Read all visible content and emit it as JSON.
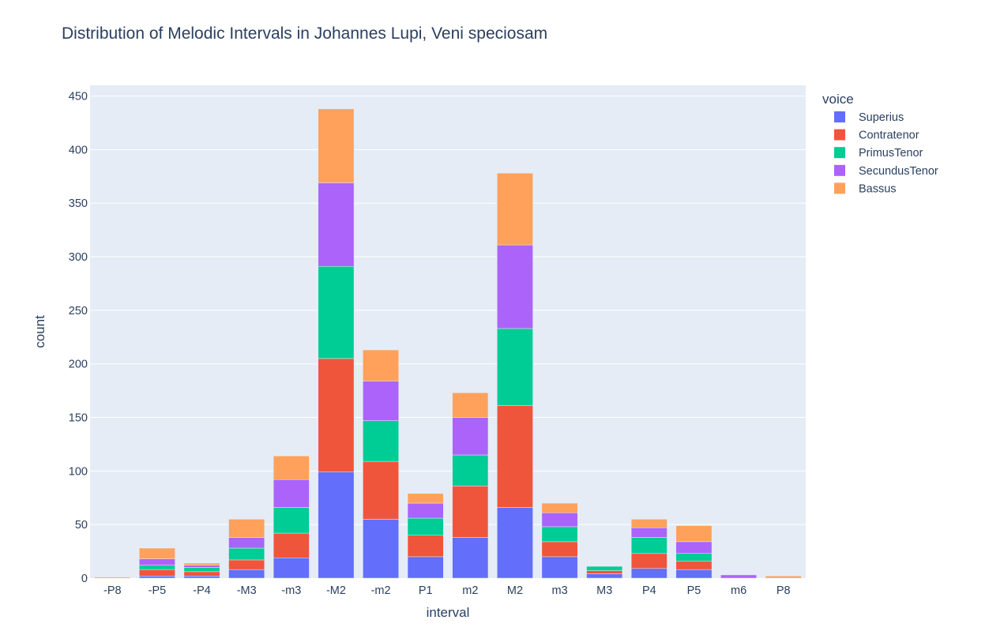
{
  "chart_data": {
    "type": "bar",
    "stacked": true,
    "title": "Distribution of Melodic Intervals in Johannes Lupi, Veni speciosam",
    "xlabel": "interval",
    "ylabel": "count",
    "ylim": [
      0,
      460
    ],
    "yticks": [
      0,
      50,
      100,
      150,
      200,
      250,
      300,
      350,
      400,
      450
    ],
    "grid": true,
    "legend_title": "voice",
    "legend_position": "top-right",
    "categories": [
      "-P8",
      "-P5",
      "-P4",
      "-M3",
      "-m3",
      "-M2",
      "-m2",
      "P1",
      "m2",
      "M2",
      "m3",
      "M3",
      "P4",
      "P5",
      "m6",
      "P8"
    ],
    "series": [
      {
        "name": "Superius",
        "color": "#636efa",
        "values": [
          0,
          2,
          2,
          8,
          19,
          99,
          55,
          20,
          38,
          66,
          20,
          4,
          9,
          8,
          0,
          0
        ]
      },
      {
        "name": "Contratenor",
        "color": "#ef553b",
        "values": [
          0,
          6,
          4,
          9,
          23,
          106,
          54,
          20,
          48,
          95,
          14,
          3,
          14,
          8,
          0,
          0
        ]
      },
      {
        "name": "PrimusTenor",
        "color": "#00cc96",
        "values": [
          0,
          4,
          4,
          11,
          24,
          86,
          38,
          16,
          29,
          72,
          14,
          4,
          15,
          7,
          0,
          0
        ]
      },
      {
        "name": "SecundusTenor",
        "color": "#ab63fa",
        "values": [
          0,
          6,
          2,
          10,
          26,
          78,
          37,
          14,
          35,
          78,
          13,
          0,
          9,
          11,
          3,
          0
        ]
      },
      {
        "name": "Bassus",
        "color": "#ffa15a",
        "values": [
          1,
          10,
          2,
          17,
          22,
          69,
          29,
          9,
          23,
          67,
          9,
          0,
          8,
          15,
          0,
          2
        ]
      }
    ]
  }
}
